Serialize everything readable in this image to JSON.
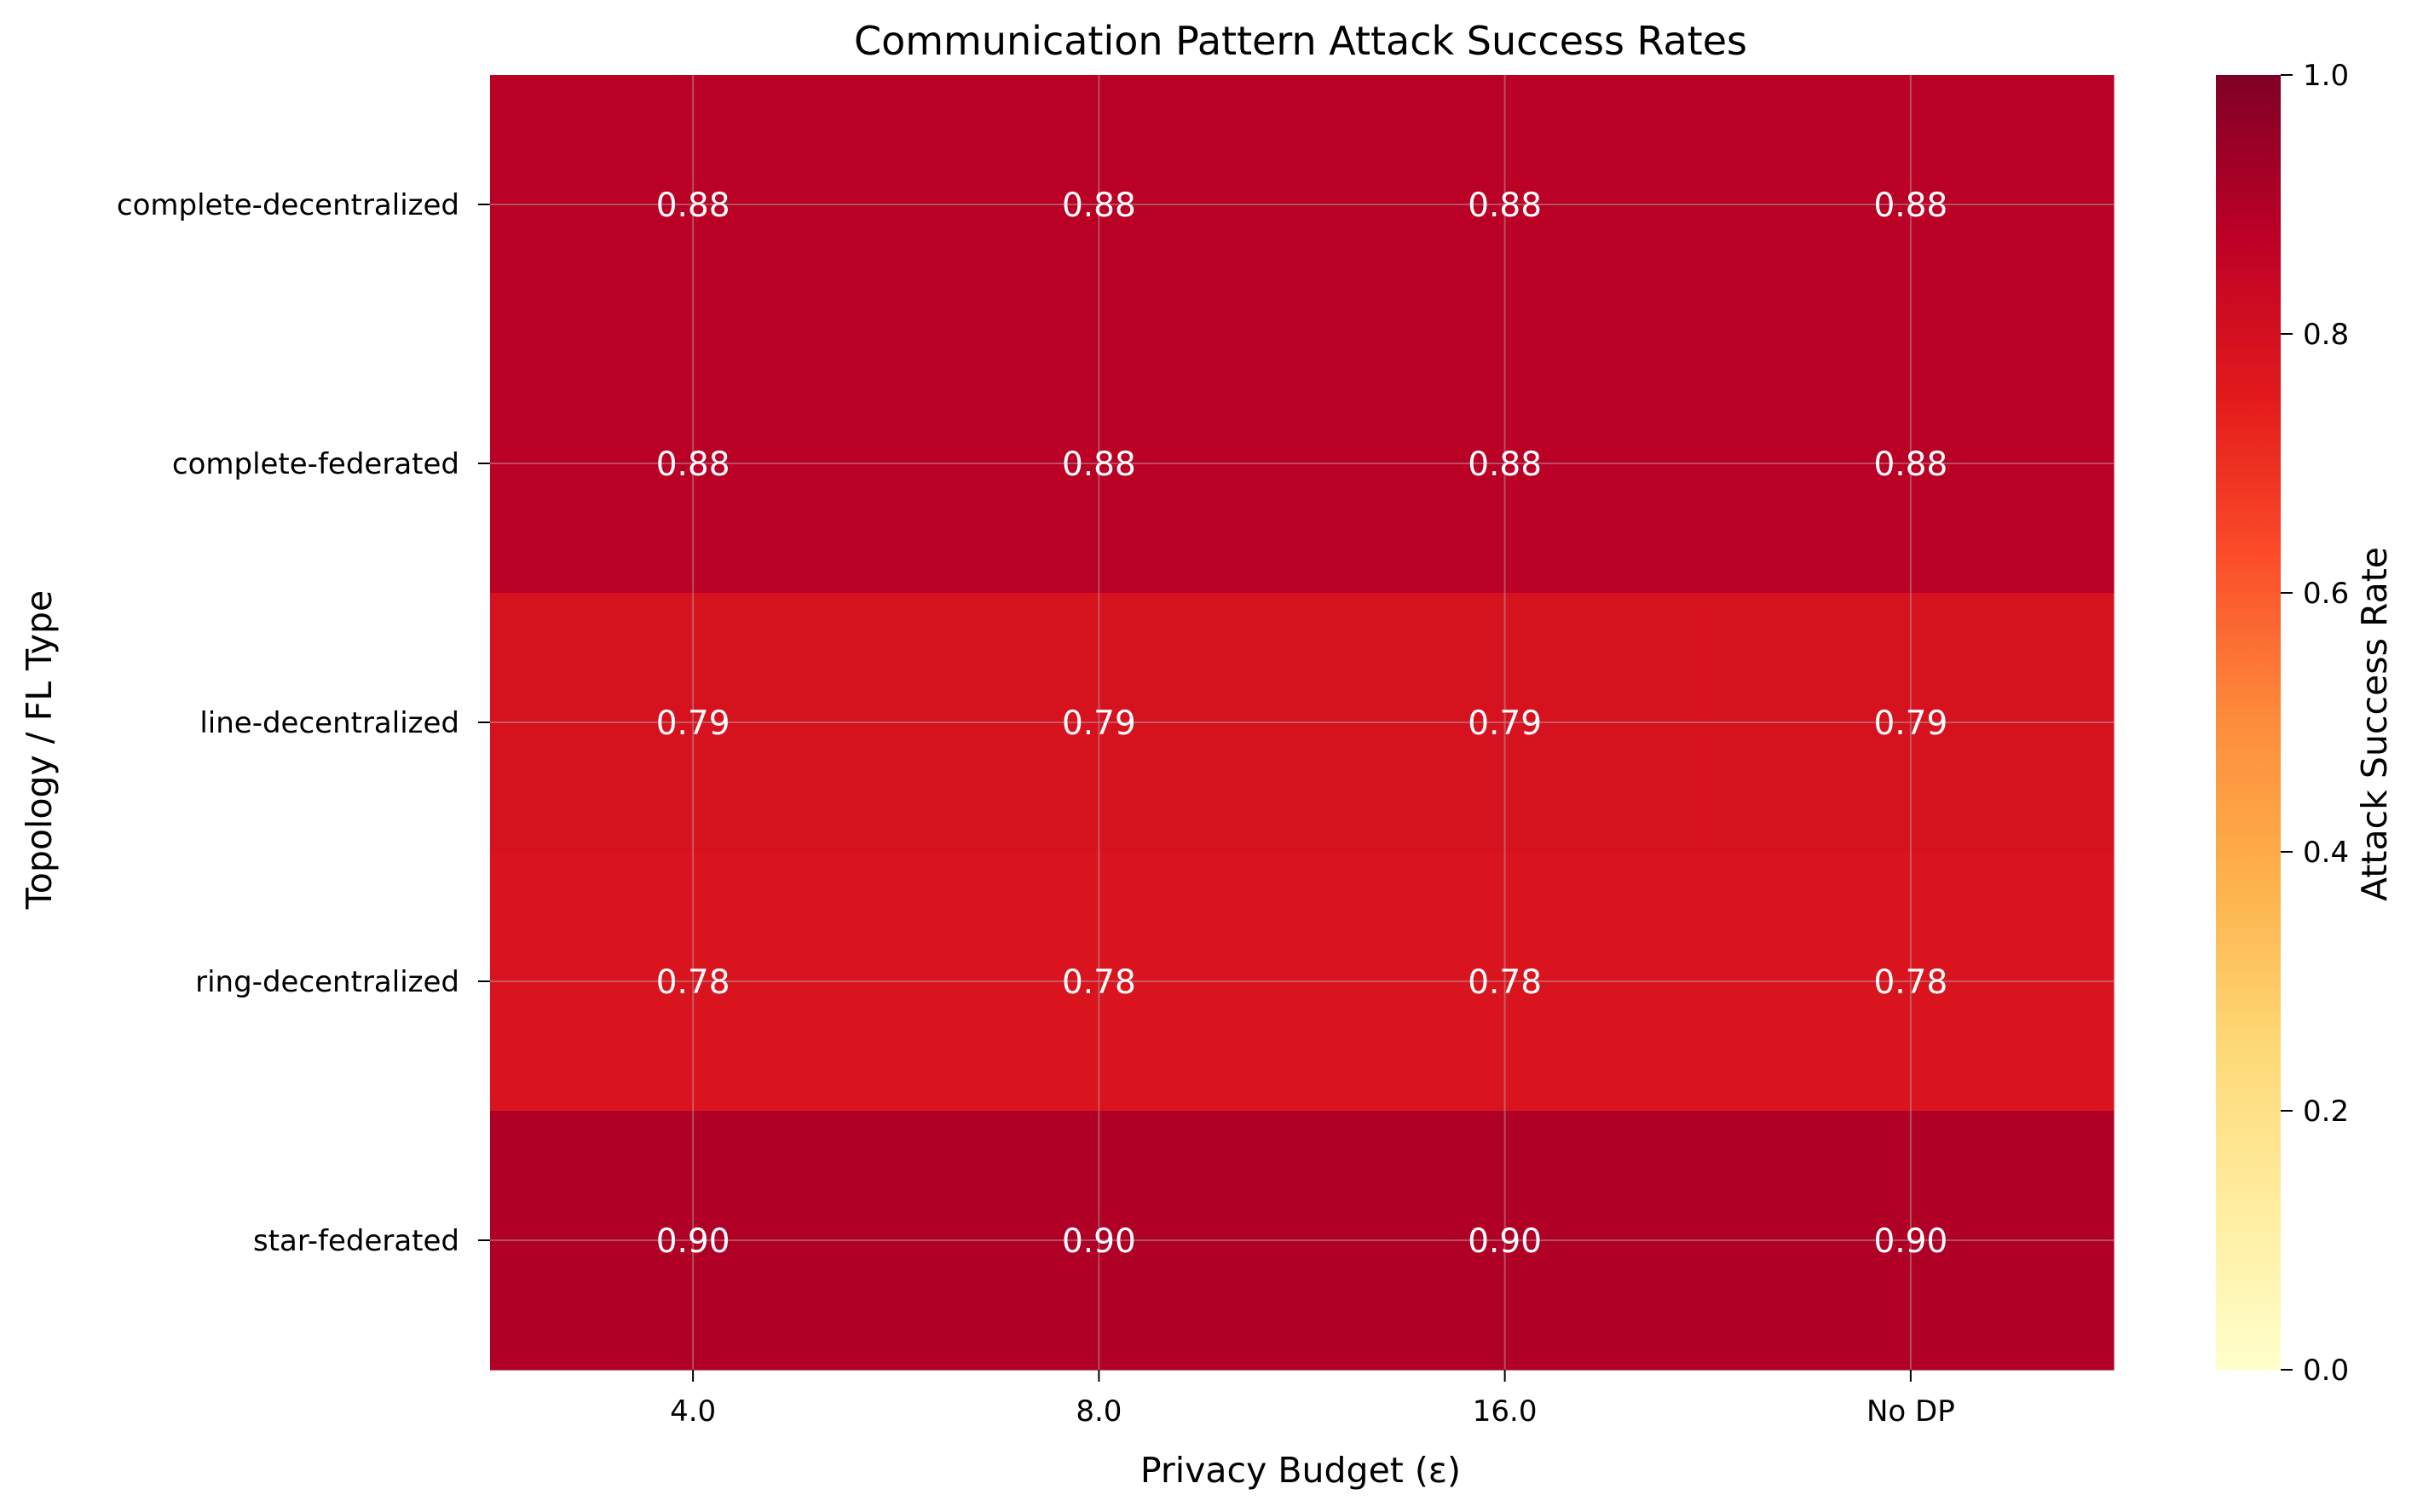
{
  "chart_data": {
    "type": "heatmap",
    "title": "Communication Pattern Attack Success Rates",
    "xlabel": "Privacy Budget (ε)",
    "ylabel": "Topology / FL Type",
    "x_categories": [
      "4.0",
      "8.0",
      "16.0",
      "No DP"
    ],
    "y_categories": [
      "complete-decentralized",
      "complete-federated",
      "line-decentralized",
      "ring-decentralized",
      "star-federated"
    ],
    "values": [
      [
        0.88,
        0.88,
        0.88,
        0.88
      ],
      [
        0.88,
        0.88,
        0.88,
        0.88
      ],
      [
        0.79,
        0.79,
        0.79,
        0.79
      ],
      [
        0.78,
        0.78,
        0.78,
        0.78
      ],
      [
        0.9,
        0.9,
        0.9,
        0.9
      ]
    ],
    "value_format_decimals": 2,
    "colormap": "YlOrRd",
    "colorbar": {
      "label": "Attack Success Rate",
      "range": [
        0,
        1
      ],
      "ticks": [
        "0.0",
        "0.2",
        "0.4",
        "0.6",
        "0.8",
        "1.0"
      ],
      "tick_values": [
        0,
        0.2,
        0.4,
        0.6,
        0.8,
        1.0
      ],
      "stops": [
        "#ffffcc",
        "#ffeda0",
        "#fed976",
        "#feb24c",
        "#fd8d3c",
        "#fc4e2a",
        "#e31a1c",
        "#bd0026",
        "#800026"
      ]
    },
    "grid": true
  }
}
